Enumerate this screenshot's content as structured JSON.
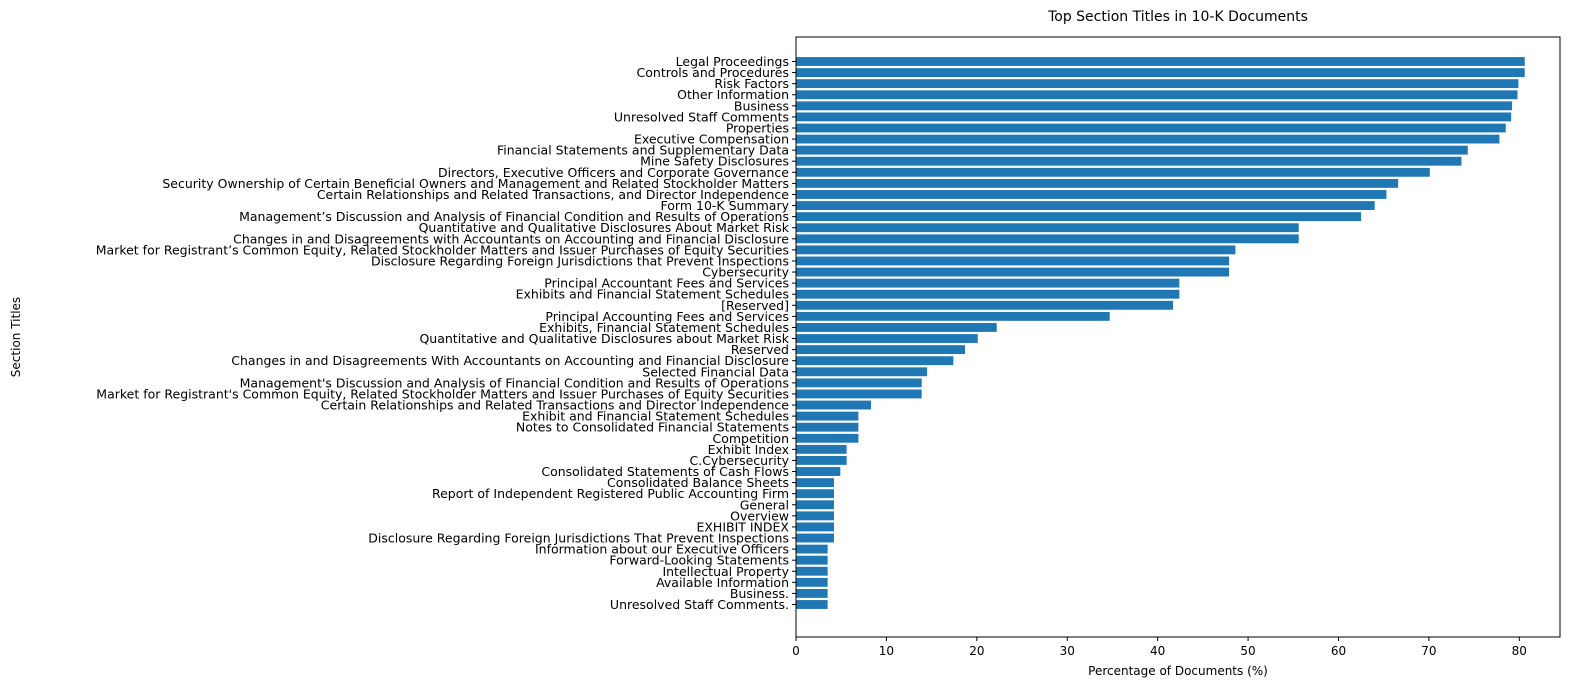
{
  "chart_data": {
    "type": "bar",
    "orientation": "horizontal",
    "title": "Top Section Titles in 10-K Documents",
    "xlabel": "Percentage of Documents (%)",
    "ylabel": "Section Titles",
    "xlim": [
      0,
      84.5
    ],
    "xticks": [
      0,
      10,
      20,
      30,
      40,
      50,
      60,
      70,
      80
    ],
    "grid": false,
    "bar_color": "#1f77b4",
    "categories": [
      "Legal Proceedings",
      "Controls and Procedures",
      "Risk Factors",
      "Other Information",
      "Business",
      "Unresolved Staff Comments",
      "Properties",
      "Executive Compensation",
      "Financial Statements and Supplementary Data",
      "Mine Safety Disclosures",
      "Directors, Executive Officers and Corporate Governance",
      "Security Ownership of Certain Beneficial Owners and Management and Related Stockholder Matters",
      "Certain Relationships and Related Transactions, and Director Independence",
      "Form 10-K Summary",
      "Management’s Discussion and Analysis of Financial Condition and Results of Operations",
      "Quantitative and Qualitative Disclosures About Market Risk",
      "Changes in and Disagreements with Accountants on Accounting and Financial Disclosure",
      "Market for Registrant’s Common Equity, Related Stockholder Matters and Issuer Purchases of Equity Securities",
      "Disclosure Regarding Foreign Jurisdictions that Prevent Inspections",
      "Cybersecurity",
      "Principal Accountant Fees and Services",
      "Exhibits and Financial Statement Schedules",
      "[Reserved]",
      "Principal Accounting Fees and Services",
      "Exhibits, Financial Statement Schedules",
      "Quantitative and Qualitative Disclosures about Market Risk",
      "Reserved",
      "Changes in and Disagreements With Accountants on Accounting and Financial Disclosure",
      "Selected Financial Data",
      "Management's Discussion and Analysis of Financial Condition and Results of Operations",
      "Market for Registrant's Common Equity, Related Stockholder Matters and Issuer Purchases of Equity Securities",
      "Certain Relationships and Related Transactions and Director Independence",
      "Exhibit and Financial Statement Schedules",
      "Notes to Consolidated Financial Statements",
      "Competition",
      "Exhibit Index",
      "C.Cybersecurity",
      "Consolidated Statements of Cash Flows",
      "Consolidated Balance Sheets",
      "Report of Independent Registered Public Accounting Firm",
      "General",
      "Overview",
      "EXHIBIT INDEX",
      "Disclosure Regarding Foreign Jurisdictions That Prevent Inspections",
      "Information about our Executive Officers",
      "Forward-Looking Statements",
      "Intellectual Property",
      "Available Information",
      "Business.",
      "Unresolved Staff Comments."
    ],
    "values": [
      80.6,
      80.6,
      79.9,
      79.8,
      79.2,
      79.1,
      78.5,
      77.8,
      74.3,
      73.6,
      70.1,
      66.6,
      65.3,
      64.0,
      62.5,
      55.6,
      55.6,
      48.6,
      47.9,
      47.9,
      42.4,
      42.4,
      41.7,
      34.7,
      22.2,
      20.1,
      18.7,
      17.4,
      14.5,
      13.9,
      13.9,
      8.3,
      6.9,
      6.9,
      6.9,
      5.6,
      5.6,
      4.9,
      4.2,
      4.2,
      4.2,
      4.2,
      4.2,
      4.2,
      3.5,
      3.5,
      3.5,
      3.5,
      3.5,
      3.5
    ]
  }
}
